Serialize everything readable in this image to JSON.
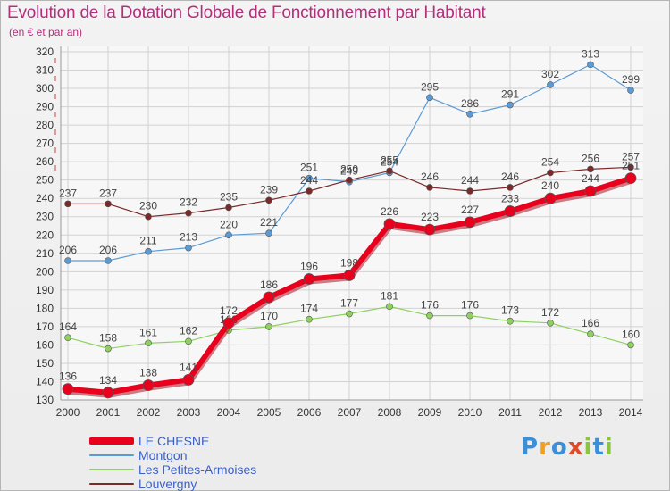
{
  "title": "Evolution de la Dotation Globale de Fonctionnement par Habitant",
  "subtitle": "(en € et par an)",
  "brand": {
    "text": "Proxiti",
    "colors": [
      "#3a8fd9",
      "#f0a020",
      "#3a8fd9",
      "#e04a2a",
      "#8bc43f",
      "#3a8fd9",
      "#8bc43f"
    ]
  },
  "colors": {
    "title": "#b0307a",
    "grid": "#d2d2d2",
    "axis_text": "#333333",
    "legend_text": "#3a5fc8"
  },
  "chart_data": {
    "type": "line",
    "x": [
      "2000",
      "2001",
      "2002",
      "2003",
      "2004",
      "2005",
      "2006",
      "2007",
      "2008",
      "2009",
      "2010",
      "2011",
      "2012",
      "2013",
      "2014"
    ],
    "ylim": [
      130,
      320
    ],
    "yticks": [
      130,
      140,
      150,
      160,
      170,
      180,
      190,
      200,
      210,
      220,
      230,
      240,
      250,
      260,
      270,
      280,
      290,
      300,
      310,
      320
    ],
    "grid": true,
    "legend_position": "bottom-left",
    "series": [
      {
        "name": "Montgon",
        "color": "#5b9bd5",
        "width": 1.2,
        "marker": 3.5,
        "values": [
          206,
          206,
          211,
          213,
          220,
          221,
          251,
          249,
          254,
          295,
          286,
          291,
          302,
          313,
          299
        ],
        "labels": [
          "206",
          "206",
          "211",
          "213",
          "220",
          "221",
          "251",
          "249",
          "254",
          "295",
          "286",
          "291",
          "302",
          "313",
          "299"
        ]
      },
      {
        "name": "Les Petites-Armoises",
        "color": "#8ed160",
        "width": 1.2,
        "marker": 3.5,
        "values": [
          164,
          158,
          161,
          162,
          168,
          170,
          174,
          177,
          181,
          176,
          176,
          173,
          172,
          166,
          160
        ],
        "labels": [
          "164",
          "158",
          "161",
          "162",
          "168",
          "170",
          "174",
          "177",
          "181",
          "176",
          "176",
          "173",
          "172",
          "166",
          "160"
        ]
      },
      {
        "name": "Louvergny",
        "color": "#7b2a2a",
        "width": 1.2,
        "marker": 3.5,
        "values": [
          237,
          237,
          230,
          232,
          235,
          239,
          244,
          250,
          255,
          246,
          244,
          246,
          254,
          256,
          257
        ],
        "labels": [
          "237",
          "237",
          "230",
          "232",
          "235",
          "239",
          "244",
          "250",
          "255",
          "246",
          "244",
          "246",
          "254",
          "256",
          "257"
        ]
      },
      {
        "name": "LE CHESNE",
        "color": "#e8001c",
        "width": 6,
        "marker": 6,
        "values": [
          136,
          134,
          138,
          141,
          172,
          186,
          196,
          198,
          226,
          223,
          227,
          233,
          240,
          244,
          251
        ],
        "labels": [
          "136",
          "134",
          "138",
          "141",
          "172",
          "186",
          "196",
          "198",
          "226",
          "223",
          "227",
          "233",
          "240",
          "244",
          "251"
        ]
      }
    ],
    "legend": [
      {
        "name": "LE CHESNE",
        "color": "#e8001c",
        "thickness": 8
      },
      {
        "name": "Montgon",
        "color": "#5b9bd5",
        "thickness": 2
      },
      {
        "name": "Les Petites-Armoises",
        "color": "#8ed160",
        "thickness": 2
      },
      {
        "name": "Louvergny",
        "color": "#7b2a2a",
        "thickness": 2
      }
    ]
  }
}
